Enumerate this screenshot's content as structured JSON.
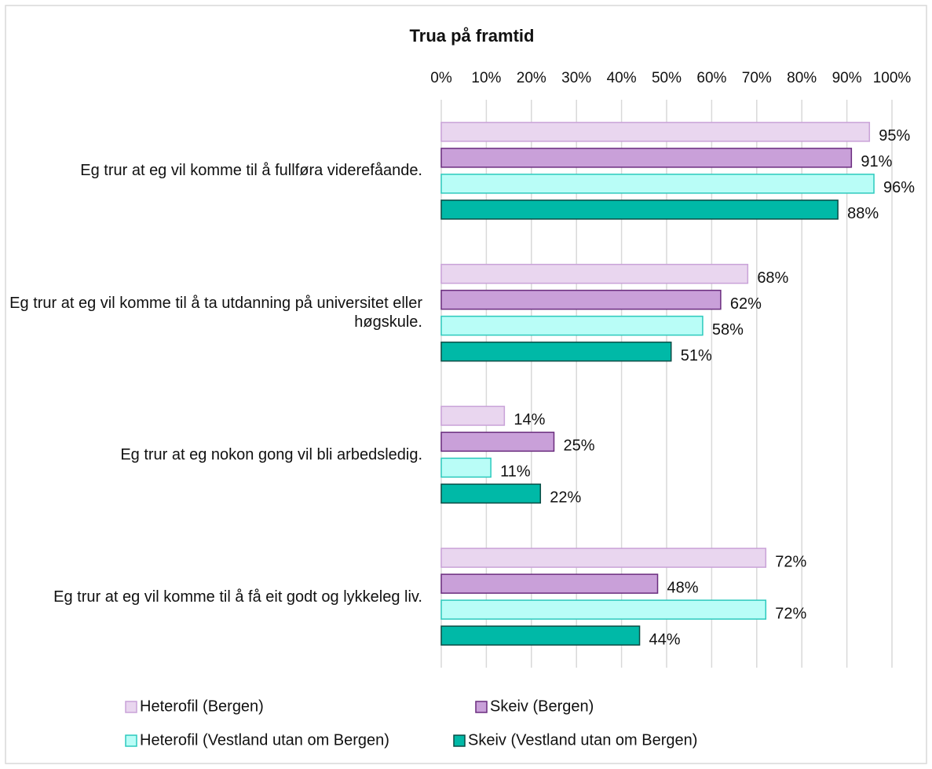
{
  "chart_data": {
    "type": "hbar",
    "title": "Trua på framtid",
    "categories": [
      "Eg trur at eg vil komme til å fullføra viderefåande.",
      "Eg trur at eg vil komme til å ta utdanning på universitet eller høgskule.",
      "Eg trur at eg nokon gong vil bli arbedsledig.",
      "Eg trur at eg vil komme til å få eit godt og lykkeleg liv."
    ],
    "series": [
      {
        "name": "Heterofil (Bergen)",
        "color": "#e9d6ef",
        "stroke": "#c9a2d8",
        "values": [
          95,
          68,
          14,
          72
        ],
        "value_labels": [
          "95%",
          "68%",
          "14%",
          "72%"
        ]
      },
      {
        "name": "Skeiv (Bergen)",
        "color": "#c9a0d9",
        "stroke": "#6a2c7e",
        "values": [
          91,
          62,
          25,
          48
        ],
        "value_labels": [
          "91%",
          "62%",
          "25%",
          "48%"
        ]
      },
      {
        "name": "Heterofil (Vestland utan om Bergen)",
        "color": "#b9fdf7",
        "stroke": "#2ccabd",
        "values": [
          96,
          58,
          11,
          72
        ],
        "value_labels": [
          "96%",
          "58%",
          "11%",
          "72%"
        ]
      },
      {
        "name": "Skeiv (Vestland utan om Bergen)",
        "color": "#00b9a7",
        "stroke": "#0a4c45",
        "values": [
          88,
          51,
          22,
          44
        ],
        "value_labels": [
          "88%",
          "51%",
          "22%",
          "44%"
        ]
      }
    ],
    "xlim": [
      0,
      100
    ],
    "xticks": [
      {
        "value": 0,
        "label": "0%"
      },
      {
        "value": 10,
        "label": "10%"
      },
      {
        "value": 20,
        "label": "20%"
      },
      {
        "value": 30,
        "label": "30%"
      },
      {
        "value": 40,
        "label": "40%"
      },
      {
        "value": 50,
        "label": "50%"
      },
      {
        "value": 60,
        "label": "60%"
      },
      {
        "value": 70,
        "label": "70%"
      },
      {
        "value": 80,
        "label": "80%"
      },
      {
        "value": 90,
        "label": "90%"
      },
      {
        "value": 100,
        "label": "100%"
      }
    ],
    "grid": true,
    "legend": "bottom"
  }
}
